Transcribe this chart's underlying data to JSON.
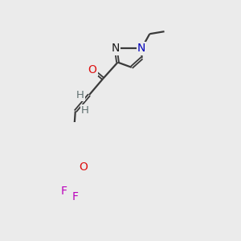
{
  "background_color": "#ebebeb",
  "bond_color": "#3a3a3a",
  "atom_colors": {
    "O": "#dd1111",
    "N_blue": "#0000bb",
    "N_black": "#1a1a1a",
    "F": "#bb00bb",
    "H": "#607070",
    "C": "#1a1a1a"
  },
  "figsize": [
    3.0,
    3.0
  ],
  "dpi": 100
}
